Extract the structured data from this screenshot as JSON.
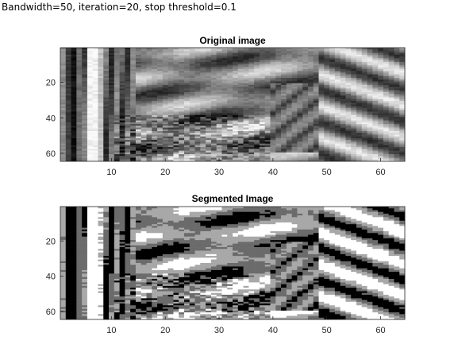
{
  "caption": "Bandwidth=50, iteration=20, stop threshold=0.1",
  "panels": [
    {
      "id": "original",
      "title": "Original image",
      "x_ticks": [
        10,
        20,
        30,
        40,
        50,
        60
      ],
      "y_ticks": [
        20,
        40,
        60
      ],
      "xlim": [
        0.5,
        64.5
      ],
      "ylim": [
        0.5,
        64.5
      ],
      "colormap": "gray",
      "kind": "grayscale"
    },
    {
      "id": "segmented",
      "title": "Segmented Image",
      "x_ticks": [
        10,
        20,
        30,
        40,
        50,
        60
      ],
      "y_ticks": [
        20,
        40,
        60
      ],
      "xlim": [
        0.5,
        64.5
      ],
      "ylim": [
        0.5,
        64.5
      ],
      "colormap": "gray",
      "kind": "four-level segmentation"
    }
  ]
}
